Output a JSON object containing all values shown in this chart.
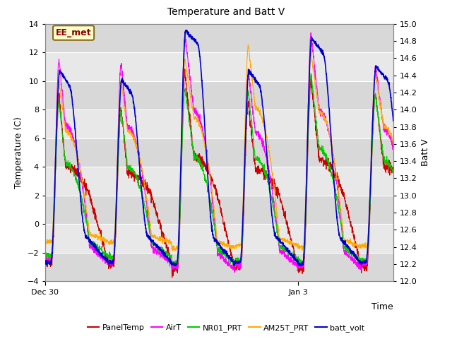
{
  "title": "Temperature and Batt V",
  "xlabel": "Time",
  "ylabel_left": "Temperature (C)",
  "ylabel_right": "Batt V",
  "annotation": "EE_met",
  "ylim_left": [
    -4,
    14
  ],
  "ylim_right": [
    12.0,
    15.0
  ],
  "yticks_left": [
    -4,
    -2,
    0,
    2,
    4,
    6,
    8,
    10,
    12,
    14
  ],
  "yticks_right": [
    12.0,
    12.2,
    12.4,
    12.6,
    12.8,
    13.0,
    13.2,
    13.4,
    13.6,
    13.8,
    14.0,
    14.2,
    14.4,
    14.6,
    14.8,
    15.0
  ],
  "xtick_pos": [
    0.0,
    0.727
  ],
  "xtick_labels": [
    "Dec 30",
    "Jan 3"
  ],
  "legend_entries": [
    "PanelTemp",
    "AirT",
    "NR01_PRT",
    "AM25T_PRT",
    "batt_volt"
  ],
  "legend_colors": [
    "#cc0000",
    "#ff00ff",
    "#00cc00",
    "#ffaa00",
    "#0000cc"
  ],
  "bg_color": "#ffffff",
  "plot_bg_alternating": [
    "#e8e8e8",
    "#d8d8d8"
  ],
  "grid_color": "#ffffff",
  "n_cycles": 5,
  "num_points": 2000
}
